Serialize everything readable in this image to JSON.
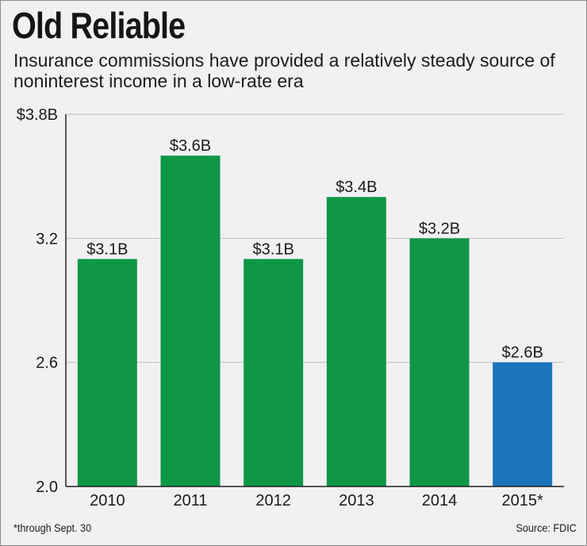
{
  "chart_data": {
    "type": "bar",
    "title": "Old Reliable",
    "subtitle": "Insurance commissions have provided a relatively steady source of noninterest income in a low-rate era",
    "categories": [
      "2010",
      "2011",
      "2012",
      "2013",
      "2014",
      "2015*"
    ],
    "values": [
      3.1,
      3.6,
      3.1,
      3.4,
      3.2,
      2.6
    ],
    "data_labels": [
      "$3.1B",
      "$3.6B",
      "$3.1B",
      "$3.4B",
      "$3.2B",
      "$2.6B"
    ],
    "bar_colors": [
      "#0f9746",
      "#0f9746",
      "#0f9746",
      "#0f9746",
      "#0f9746",
      "#1b75bc"
    ],
    "ylim": [
      2.0,
      3.8
    ],
    "yticks": [
      2.0,
      2.6,
      3.2,
      3.8
    ],
    "ytick_labels": [
      "2.0",
      "2.6",
      "3.2",
      "$3.8B"
    ],
    "grid": true,
    "xlabel": "",
    "ylabel": ""
  },
  "footnote": "*through Sept. 30",
  "source": "Source: FDIC",
  "colors": {
    "background": "#f1f1f2",
    "gridline": "#bfbfbf",
    "axis": "#222222",
    "highlight": "#1b75bc",
    "bar": "#0f9746"
  }
}
